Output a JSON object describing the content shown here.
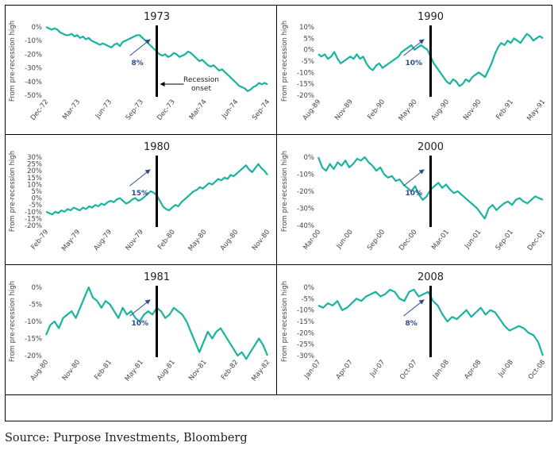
{
  "source": "Source: Purpose Investments, Bloomberg",
  "colors": {
    "line": "#19b3a0",
    "arrow": "#2f4a8a",
    "label": "#2f4a8a",
    "onset": "#000000"
  },
  "ylabel": "From pre-recession high",
  "onset_label": [
    "Recession",
    "onset"
  ],
  "chart_data": [
    {
      "type": "line",
      "title": "1973",
      "yticks": [
        "0%",
        "-10%",
        "-20%",
        "-30%",
        "-40%",
        "-50%"
      ],
      "ylim": [
        -50,
        0
      ],
      "xticks": [
        "Dec-72",
        "Mar-73",
        "Jun-73",
        "Sep-73",
        "Dec-73",
        "Mar-74",
        "Jun-74",
        "Sep-74"
      ],
      "xlim": [
        0,
        24
      ],
      "onset_index": 12,
      "rise_label": "8%",
      "values": [
        0,
        -1,
        -2,
        -1,
        -2,
        -4,
        -5,
        -6,
        -6,
        -5,
        -7,
        -6,
        -8,
        -7,
        -9,
        -8,
        -10,
        -11,
        -12,
        -13,
        -12,
        -13,
        -14,
        -15,
        -13,
        -12,
        -14,
        -11,
        -10,
        -9,
        -8,
        -7,
        -6,
        -6,
        -8,
        -10,
        -12,
        -14,
        -16,
        -18,
        -20,
        -21,
        -20,
        -22,
        -21,
        -19,
        -20,
        -22,
        -21,
        -20,
        -18,
        -19,
        -21,
        -23,
        -25,
        -24,
        -26,
        -28,
        -29,
        -28,
        -30,
        -32,
        -31,
        -33,
        -35,
        -37,
        -39,
        -41,
        -43,
        -44,
        -45,
        -47,
        -46,
        -44,
        -43,
        -41,
        -42,
        -41,
        -42
      ],
      "annotation_onset": true
    },
    {
      "type": "line",
      "title": "1990",
      "yticks": [
        "10%",
        "5%",
        "0%",
        "-5%",
        "-10%",
        "-15%",
        "-20%"
      ],
      "ylim": [
        -20,
        10
      ],
      "xticks": [
        "Aug-89",
        "Nov-89",
        "Feb-90",
        "May-90",
        "Aug-90",
        "Nov-90",
        "Feb-91",
        "May-91"
      ],
      "xlim": [
        0,
        24
      ],
      "onset_index": 12,
      "rise_label": "10%",
      "values": [
        -2,
        -3,
        -2,
        -4,
        -3,
        -1,
        -4,
        -6,
        -5,
        -4,
        -3,
        -4,
        -2,
        -4,
        -3,
        -6,
        -8,
        -9,
        -7,
        -6,
        -8,
        -7,
        -6,
        -5,
        -4,
        -3,
        -1,
        0,
        1,
        2,
        0,
        1,
        2,
        1,
        0,
        -3,
        -6,
        -8,
        -10,
        -12,
        -14,
        -15,
        -13,
        -14,
        -16,
        -15,
        -13,
        -14,
        -12,
        -11,
        -10,
        -11,
        -12,
        -9,
        -6,
        -2,
        1,
        3,
        2,
        4,
        3,
        5,
        4,
        3,
        5,
        7,
        6,
        4,
        5,
        6,
        5
      ],
      "annotation_onset": false
    },
    {
      "type": "line",
      "title": "1980",
      "yticks": [
        "30%",
        "25%",
        "20%",
        "15%",
        "10%",
        "5%",
        "0%",
        "-5%",
        "-10%",
        "-15%",
        "-20%"
      ],
      "ylim": [
        -20,
        30
      ],
      "xticks": [
        "Feb-79",
        "May-79",
        "Aug-79",
        "Nov-79",
        "Feb-80",
        "May-80",
        "Aug-80",
        "Nov-80"
      ],
      "xlim": [
        0,
        24
      ],
      "onset_index": 12,
      "rise_label": "15%",
      "values": [
        -10,
        -11,
        -12,
        -10,
        -11,
        -9,
        -10,
        -8,
        -9,
        -7,
        -8,
        -9,
        -7,
        -8,
        -6,
        -7,
        -5,
        -6,
        -4,
        -5,
        -3,
        -2,
        -3,
        -1,
        0,
        -2,
        -4,
        -3,
        -1,
        0,
        -2,
        -1,
        1,
        3,
        5,
        4,
        2,
        -2,
        -6,
        -8,
        -9,
        -7,
        -5,
        -6,
        -3,
        -1,
        1,
        3,
        5,
        6,
        8,
        7,
        9,
        11,
        10,
        12,
        14,
        13,
        15,
        14,
        17,
        16,
        18,
        20,
        22,
        24,
        21,
        19,
        22,
        25,
        22,
        20,
        17
      ],
      "annotation_onset": false
    },
    {
      "type": "line",
      "title": "2000",
      "yticks": [
        "0%",
        "-10%",
        "-20%",
        "-30%",
        "-40%"
      ],
      "ylim": [
        -40,
        0
      ],
      "xticks": [
        "Mar-00",
        "Jun-00",
        "Sep-00",
        "Dec-00",
        "Mar-01",
        "Jun-01",
        "Sep-01",
        "Dec-01"
      ],
      "xlim": [
        0,
        24
      ],
      "onset_index": 12,
      "rise_label": "10%",
      "values": [
        0,
        -6,
        -8,
        -4,
        -7,
        -3,
        -5,
        -2,
        -6,
        -4,
        -1,
        -2,
        0,
        -3,
        -5,
        -8,
        -6,
        -10,
        -12,
        -11,
        -14,
        -13,
        -16,
        -18,
        -20,
        -17,
        -22,
        -25,
        -23,
        -19,
        -17,
        -15,
        -18,
        -16,
        -19,
        -21,
        -20,
        -22,
        -24,
        -26,
        -28,
        -30,
        -33,
        -36,
        -30,
        -28,
        -31,
        -29,
        -27,
        -26,
        -28,
        -25,
        -24,
        -26,
        -27,
        -25,
        -23,
        -24,
        -25
      ],
      "annotation_onset": false
    },
    {
      "type": "line",
      "title": "1981",
      "yticks": [
        "0%",
        "-5%",
        "-10%",
        "-15%",
        "-20%"
      ],
      "ylim": [
        -20,
        0
      ],
      "xticks": [
        "Aug-80",
        "Nov-80",
        "Feb-81",
        "May-81",
        "Aug-81",
        "Nov-81",
        "Feb-82",
        "May-82"
      ],
      "xlim": [
        0,
        24
      ],
      "onset_index": 12,
      "rise_label": "10%",
      "values": [
        -14,
        -11,
        -10,
        -12,
        -9,
        -8,
        -7,
        -9,
        -6,
        -3,
        0,
        -3,
        -4,
        -6,
        -4,
        -5,
        -7,
        -9,
        -6,
        -8,
        -7,
        -9,
        -10,
        -8,
        -7,
        -8,
        -6,
        -7,
        -9,
        -8,
        -6,
        -7,
        -8,
        -10,
        -13,
        -16,
        -19,
        -16,
        -13,
        -15,
        -13,
        -12,
        -14,
        -16,
        -18,
        -20,
        -19,
        -21,
        -19,
        -17,
        -15,
        -17,
        -20
      ],
      "annotation_onset": false
    },
    {
      "type": "line",
      "title": "2008",
      "yticks": [
        "0%",
        "-5%",
        "-10%",
        "-15%",
        "-20%",
        "-25%",
        "-30%"
      ],
      "ylim": [
        -30,
        0
      ],
      "xticks": [
        "Jan-07",
        "Apr-07",
        "Jul-07",
        "Oct-07",
        "Jan-08",
        "Apr-08",
        "Jul-08",
        "Oct-08"
      ],
      "xlim": [
        0,
        24
      ],
      "onset_index": 12,
      "rise_label": "8%",
      "values": [
        -8,
        -9,
        -7,
        -8,
        -6,
        -10,
        -9,
        -7,
        -5,
        -6,
        -4,
        -3,
        -2,
        -4,
        -3,
        -1,
        -2,
        -5,
        -6,
        -2,
        -1,
        -4,
        -3,
        -2,
        -6,
        -8,
        -12,
        -15,
        -13,
        -14,
        -12,
        -10,
        -13,
        -11,
        -9,
        -12,
        -10,
        -11,
        -14,
        -17,
        -19,
        -18,
        -17,
        -18,
        -20,
        -21,
        -24,
        -30
      ],
      "annotation_onset": false
    }
  ]
}
